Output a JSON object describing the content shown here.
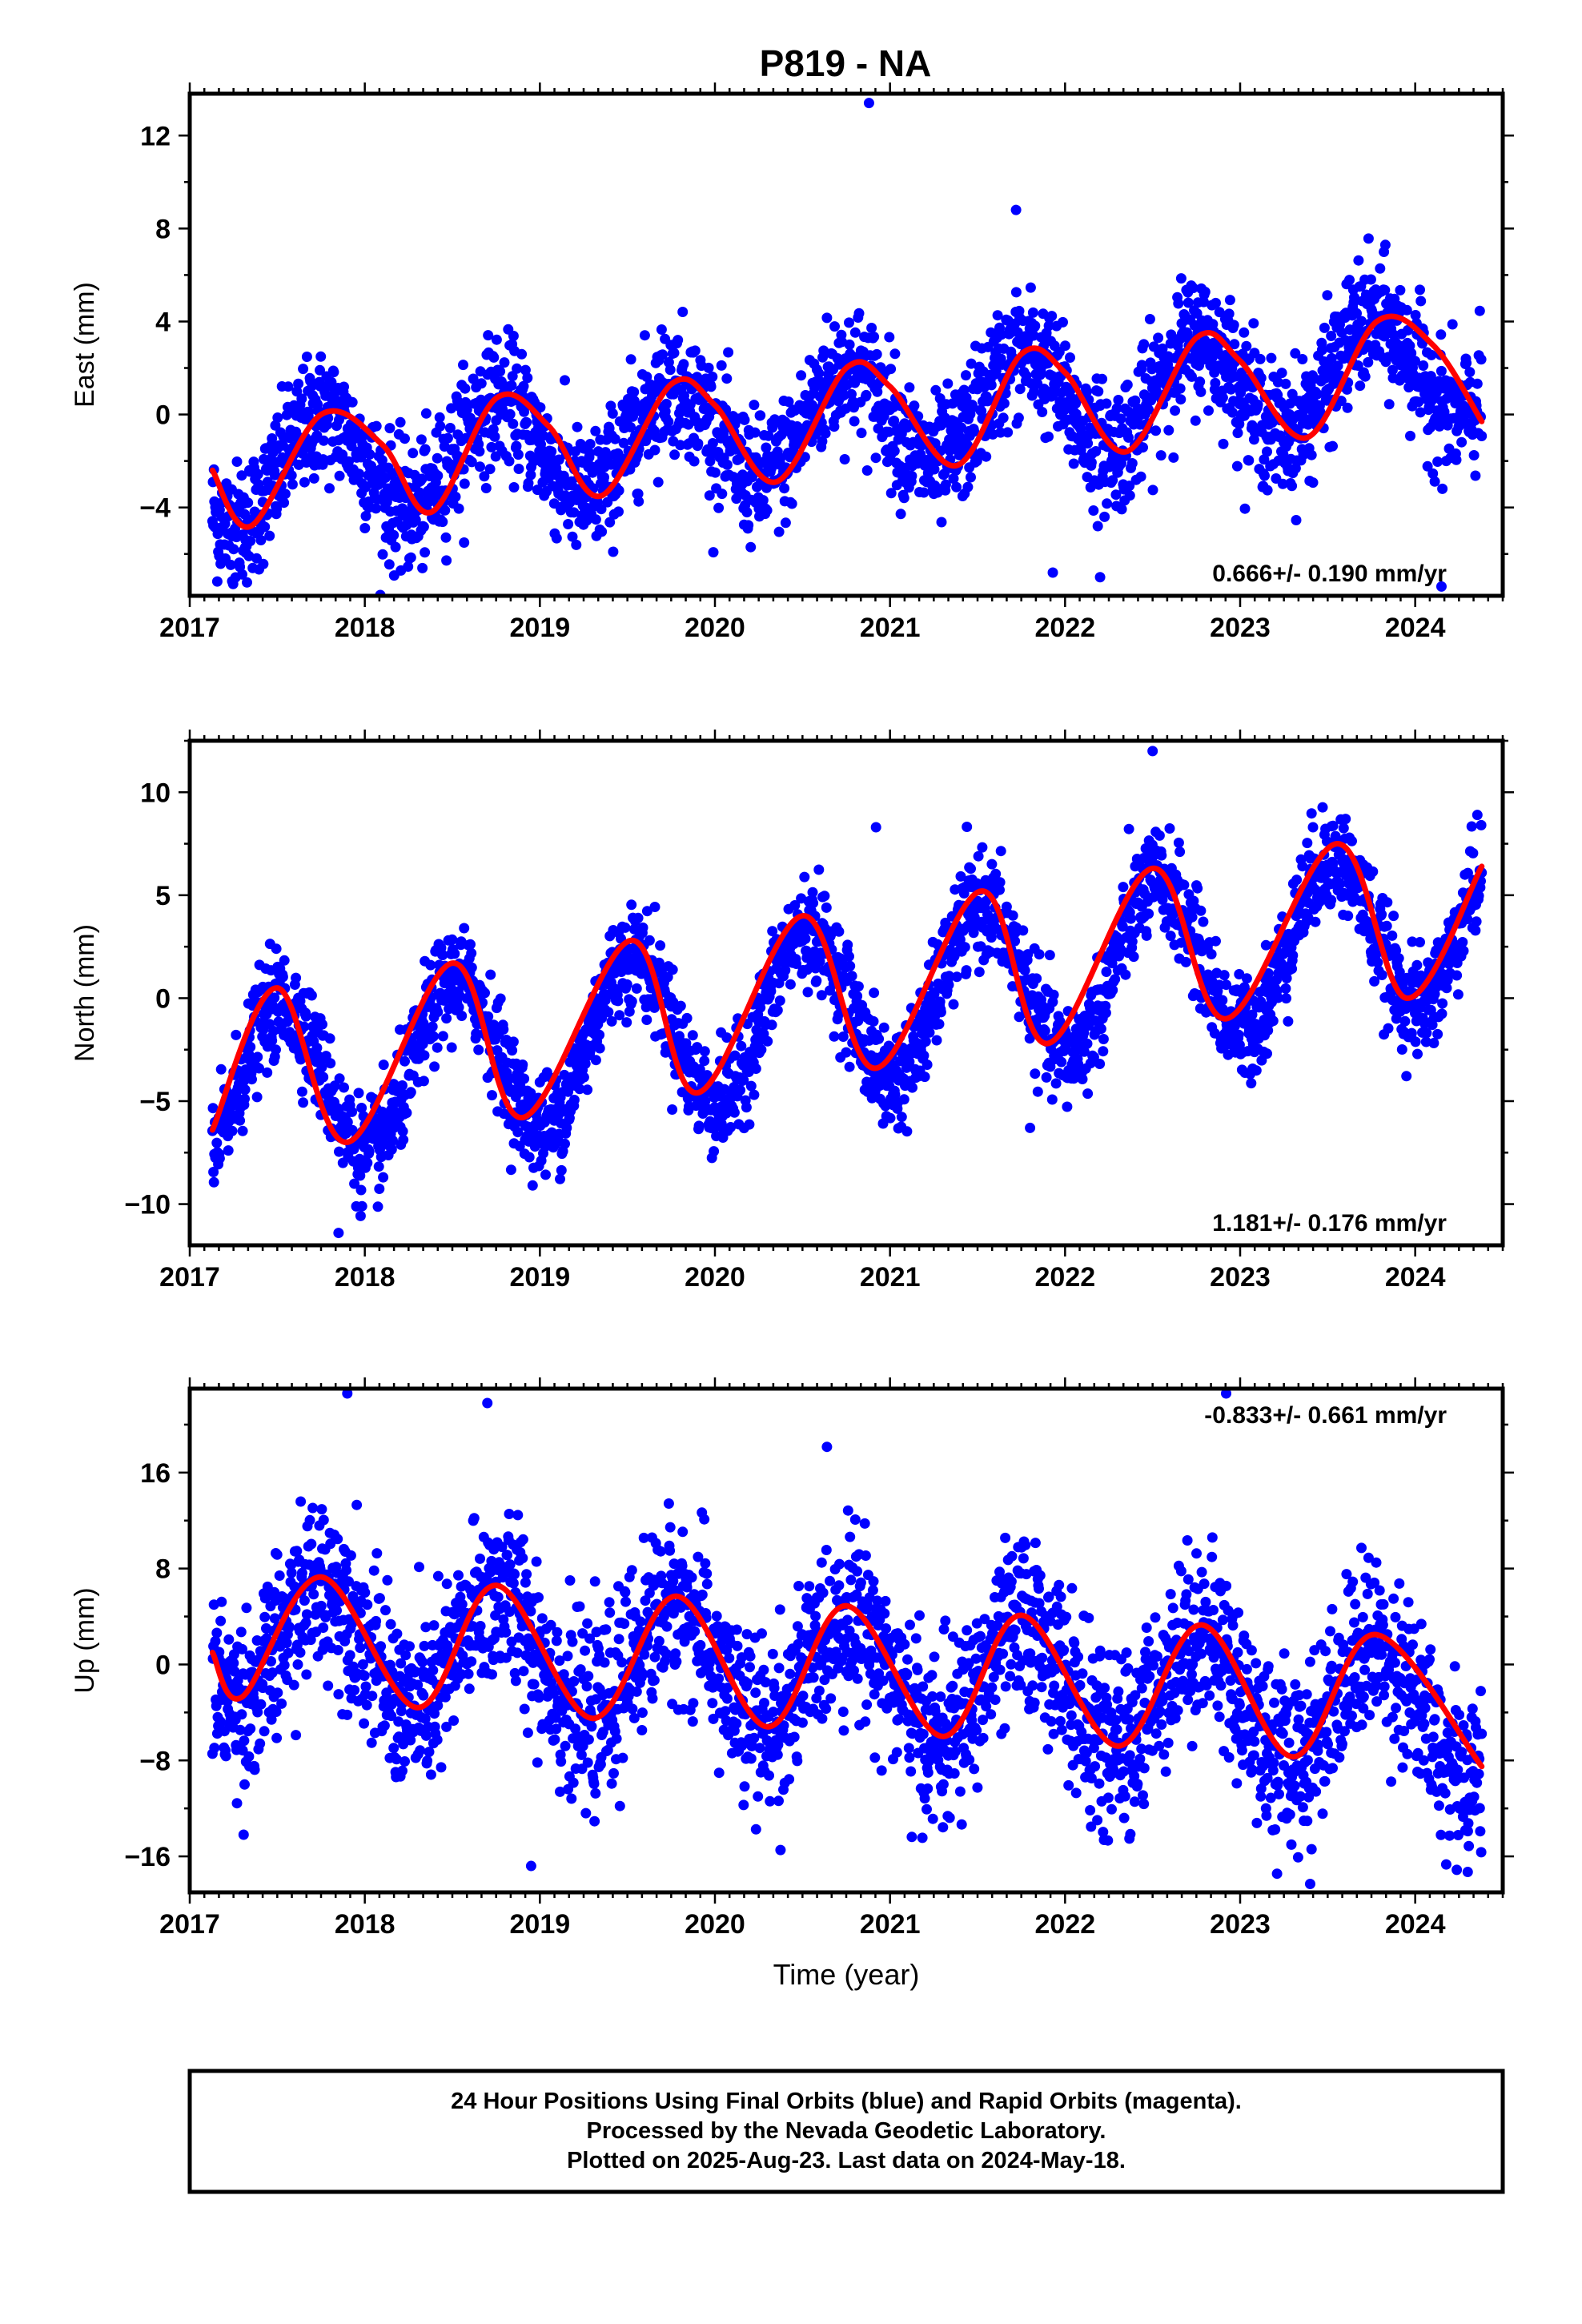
{
  "page": {
    "title": "P819 - NA"
  },
  "colors": {
    "final_orbits": "#0000ff",
    "model_fit": "#ff0000",
    "frame": "#000000",
    "background": "#ffffff"
  },
  "footer": {
    "line1": "24 Hour Positions Using Final Orbits (blue) and Rapid Orbits (magenta).",
    "line2": "Processed by the Nevada Geodetic Laboratory.",
    "line3": "Plotted on 2025-Aug-23. Last data on 2024-May-18."
  },
  "chart_data": [
    {
      "type": "scatter",
      "ylabel": "East (mm)",
      "xlabel": "",
      "xlim": [
        2017.0,
        2024.5
      ],
      "ylim": [
        -7.8,
        13.8
      ],
      "x_ticks": [
        2017,
        2018,
        2019,
        2020,
        2021,
        2022,
        2023,
        2024
      ],
      "y_ticks": [
        -4,
        0,
        4,
        8,
        12
      ],
      "grid": false,
      "rate_label": "0.666+/- 0.190 mm/yr",
      "rate_label_position": "bottom-right",
      "model": {
        "data_start": 2017.13,
        "data_end": 2024.38,
        "rate": 0.666,
        "rate_uncertainty": 0.19,
        "mean": -0.22,
        "annual_amplitude": 2.2,
        "peak_phase": 0.76
      },
      "model_fit_points": [
        [
          2017.13,
          -2.4
        ],
        [
          2017.35,
          -4.8
        ],
        [
          2017.75,
          0.0
        ],
        [
          2018.1,
          -1.3
        ],
        [
          2018.38,
          -4.2
        ],
        [
          2018.75,
          0.7
        ],
        [
          2019.05,
          -0.5
        ],
        [
          2019.35,
          -3.5
        ],
        [
          2019.75,
          1.3
        ],
        [
          2020.0,
          0.4
        ],
        [
          2020.35,
          -2.9
        ],
        [
          2020.75,
          2.0
        ],
        [
          2021.0,
          1.2
        ],
        [
          2021.38,
          -2.2
        ],
        [
          2021.75,
          2.6
        ],
        [
          2022.0,
          1.8
        ],
        [
          2022.35,
          -1.6
        ],
        [
          2022.75,
          3.3
        ],
        [
          2023.0,
          2.3
        ],
        [
          2023.38,
          -1.0
        ],
        [
          2023.78,
          4.0
        ],
        [
          2024.1,
          3.0
        ],
        [
          2024.38,
          -0.3
        ]
      ],
      "outliers": [
        [
          2020.88,
          13.4
        ],
        [
          2021.72,
          8.8
        ],
        [
          2022.2,
          -7.0
        ],
        [
          2021.93,
          -6.8
        ],
        [
          2024.15,
          -7.4
        ]
      ]
    },
    {
      "type": "scatter",
      "ylabel": "North (mm)",
      "xlabel": "",
      "xlim": [
        2017.0,
        2024.5
      ],
      "ylim": [
        -12,
        12.5
      ],
      "x_ticks": [
        2017,
        2018,
        2019,
        2020,
        2021,
        2022,
        2023,
        2024
      ],
      "y_ticks": [
        -10,
        -5,
        0,
        5,
        10
      ],
      "grid": false,
      "rate_label": "1.181+/- 0.176 mm/yr",
      "rate_label_position": "bottom-right",
      "model": {
        "data_start": 2017.13,
        "data_end": 2024.38,
        "rate": 1.181,
        "rate_uncertainty": 0.176,
        "mean": -0.3,
        "annual_amplitude": 3.9,
        "peak_phase": 0.52
      },
      "model_fit_points": [
        [
          2017.13,
          -6.4
        ],
        [
          2017.5,
          0.5
        ],
        [
          2017.9,
          -7.0
        ],
        [
          2018.5,
          1.7
        ],
        [
          2018.9,
          -5.8
        ],
        [
          2019.52,
          2.8
        ],
        [
          2019.9,
          -4.6
        ],
        [
          2020.5,
          4.0
        ],
        [
          2020.92,
          -3.4
        ],
        [
          2021.52,
          5.2
        ],
        [
          2021.9,
          -2.2
        ],
        [
          2022.5,
          6.3
        ],
        [
          2022.92,
          -1.0
        ],
        [
          2023.55,
          7.5
        ],
        [
          2023.95,
          0.0
        ],
        [
          2024.38,
          6.4
        ]
      ],
      "outliers": [
        [
          2022.5,
          12.0
        ],
        [
          2020.92,
          8.3
        ],
        [
          2017.85,
          -11.4
        ],
        [
          2021.8,
          -6.3
        ]
      ]
    },
    {
      "type": "scatter",
      "ylabel": "Up (mm)",
      "xlabel": "Time (year)",
      "xlim": [
        2017.0,
        2024.5
      ],
      "ylim": [
        -19,
        23
      ],
      "x_ticks": [
        2017,
        2018,
        2019,
        2020,
        2021,
        2022,
        2023,
        2024
      ],
      "y_ticks": [
        -16,
        -8,
        0,
        8,
        16
      ],
      "grid": false,
      "rate_label": "-0.833+/- 0.661 mm/yr",
      "rate_label_position": "top-right",
      "model": {
        "data_start": 2017.13,
        "data_end": 2024.38,
        "rate": -0.833,
        "rate_uncertainty": 0.661,
        "mean": -0.9,
        "annual_amplitude": 5.1,
        "peak_phase": 0.77
      },
      "model_fit_points": [
        [
          2017.13,
          1.0
        ],
        [
          2017.3,
          -2.7
        ],
        [
          2017.75,
          7.3
        ],
        [
          2018.3,
          -3.6
        ],
        [
          2018.75,
          6.6
        ],
        [
          2019.3,
          -4.5
        ],
        [
          2019.78,
          5.7
        ],
        [
          2020.3,
          -5.2
        ],
        [
          2020.75,
          4.9
        ],
        [
          2021.3,
          -6.0
        ],
        [
          2021.75,
          4.1
        ],
        [
          2022.3,
          -6.8
        ],
        [
          2022.78,
          3.3
        ],
        [
          2023.3,
          -7.7
        ],
        [
          2023.77,
          2.5
        ],
        [
          2024.38,
          -8.5
        ]
      ],
      "outliers": [
        [
          2017.9,
          22.6
        ],
        [
          2022.92,
          22.6
        ],
        [
          2018.7,
          21.8
        ],
        [
          2023.4,
          -18.3
        ],
        [
          2018.95,
          -16.8
        ],
        [
          2024.3,
          -17.3
        ]
      ]
    }
  ]
}
